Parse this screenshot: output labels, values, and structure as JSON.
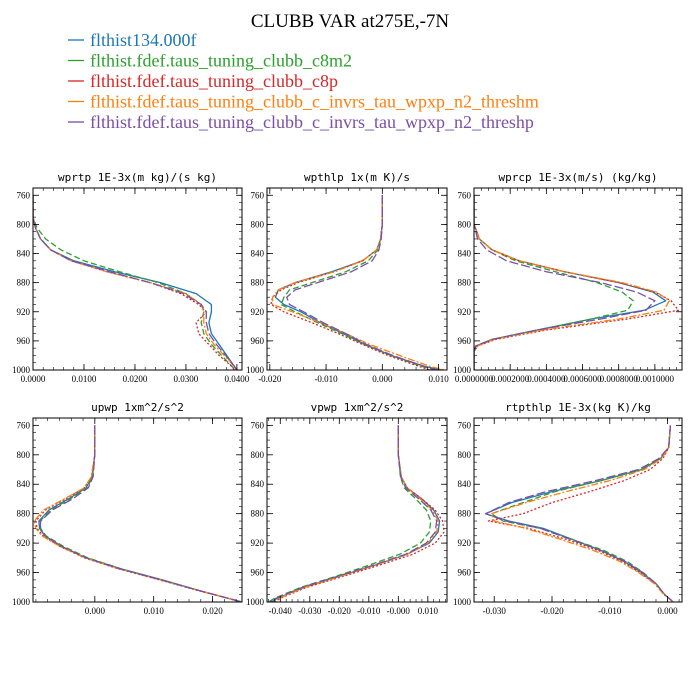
{
  "title": "CLUBB VAR at275E,-7N",
  "series": [
    {
      "name": "flthist134.000f",
      "color": "#1f77b4",
      "dash": "solid"
    },
    {
      "name": "flthist.fdef.taus_tuning_clubb_c8m2",
      "color": "#2ca02c",
      "dash": "dash"
    },
    {
      "name": "flthist.fdef.taus_tuning_clubb_c8p",
      "color": "#d62728",
      "dash": "dot"
    },
    {
      "name": "flthist.fdef.taus_tuning_clubb_c_invrs_tau_wpxp_n2_threshm",
      "color": "#ff7f0e",
      "dash": "dashdot"
    },
    {
      "name": "flthist.fdef.taus_tuning_clubb_c_invrs_tau_wpxp_n2_threshp",
      "color": "#7b4fa6",
      "dash": "longdash"
    }
  ],
  "chart_data": [
    {
      "type": "line",
      "title": "wprtp  1E-3x(m kg)/(s kg)",
      "xlim": [
        0,
        0.041
      ],
      "ylim": [
        1000,
        750
      ],
      "xticks": [
        0,
        0.01,
        0.02,
        0.03,
        0.04
      ],
      "xtick_labels": [
        "0.0000",
        "0.0100",
        "0.0200",
        "0.0300",
        "0.0400"
      ],
      "yticks": [
        760,
        800,
        840,
        880,
        920,
        960,
        1000
      ],
      "y": [
        760,
        790,
        805,
        820,
        835,
        850,
        865,
        880,
        895,
        910,
        920,
        935,
        950,
        965,
        980,
        995,
        1000
      ],
      "series_values": [
        [
          0,
          0,
          0.0005,
          0.0015,
          0.0035,
          0.008,
          0.016,
          0.025,
          0.032,
          0.035,
          0.035,
          0.0345,
          0.035,
          0.0365,
          0.038,
          0.0395,
          0.04
        ],
        [
          0,
          0,
          0.0008,
          0.0025,
          0.0055,
          0.01,
          0.017,
          0.0245,
          0.03,
          0.033,
          0.0335,
          0.033,
          0.0335,
          0.035,
          0.037,
          0.039,
          0.0398
        ],
        [
          0,
          0,
          0.0005,
          0.0015,
          0.0035,
          0.0075,
          0.0145,
          0.023,
          0.029,
          0.0325,
          0.034,
          0.032,
          0.0325,
          0.0345,
          0.0365,
          0.039,
          0.0395
        ],
        [
          0,
          0,
          0.0005,
          0.0015,
          0.0035,
          0.0075,
          0.0145,
          0.023,
          0.03,
          0.033,
          0.0335,
          0.0335,
          0.034,
          0.0355,
          0.0375,
          0.0395,
          0.04
        ],
        [
          0,
          0,
          0.0005,
          0.0015,
          0.0035,
          0.0075,
          0.015,
          0.023,
          0.0295,
          0.033,
          0.034,
          0.034,
          0.0345,
          0.036,
          0.0378,
          0.0395,
          0.04
        ]
      ]
    },
    {
      "type": "line",
      "title": "wpthlp  1x(m K)/s",
      "xlim": [
        -0.0205,
        0.0115
      ],
      "ylim": [
        1000,
        750
      ],
      "xticks": [
        -0.02,
        -0.01,
        0,
        0.01
      ],
      "xtick_labels": [
        "-0.020",
        "-0.010",
        "0.000",
        "0.010"
      ],
      "yticks": [
        760,
        800,
        840,
        880,
        920,
        960,
        1000
      ],
      "y": [
        760,
        800,
        820,
        835,
        850,
        865,
        880,
        890,
        900,
        910,
        920,
        935,
        950,
        965,
        980,
        995,
        1000
      ],
      "series_values": [
        [
          0,
          0,
          -0.0003,
          -0.001,
          -0.0035,
          -0.009,
          -0.0155,
          -0.0185,
          -0.019,
          -0.0175,
          -0.0145,
          -0.011,
          -0.007,
          -0.003,
          0.0015,
          0.0075,
          0.0105
        ],
        [
          0,
          0,
          -0.0003,
          -0.0008,
          -0.0025,
          -0.0065,
          -0.0125,
          -0.0165,
          -0.0175,
          -0.018,
          -0.0155,
          -0.0115,
          -0.0072,
          -0.0032,
          0.0015,
          0.007,
          0.0095
        ],
        [
          0,
          0,
          -0.0003,
          -0.001,
          -0.0035,
          -0.0085,
          -0.015,
          -0.018,
          -0.0195,
          -0.0198,
          -0.0175,
          -0.0125,
          -0.0078,
          -0.0035,
          0.001,
          0.0065,
          0.0085
        ],
        [
          0,
          0,
          -0.0003,
          -0.001,
          -0.0035,
          -0.0085,
          -0.0155,
          -0.0185,
          -0.0195,
          -0.0195,
          -0.016,
          -0.011,
          -0.0065,
          -0.0022,
          0.003,
          0.0085,
          0.011
        ],
        [
          0,
          0,
          -0.0002,
          -0.0006,
          -0.0018,
          -0.0055,
          -0.0115,
          -0.0155,
          -0.017,
          -0.0165,
          -0.014,
          -0.0105,
          -0.0065,
          -0.0028,
          0.0018,
          0.0075,
          0.0098
        ]
      ]
    },
    {
      "type": "line",
      "title": "wprcp  1E-3x(m/s) (kg/kg)",
      "xlim": [
        0,
        0.00115
      ],
      "ylim": [
        1000,
        750
      ],
      "xticks": [
        0,
        0.0002,
        0.0004,
        0.0006,
        0.0008,
        0.001
      ],
      "xtick_labels": [
        "0.0000000",
        "0.0002000",
        "0.0004000",
        "0.0006000",
        "0.0008000",
        "0.0010000"
      ],
      "yticks": [
        760,
        800,
        840,
        880,
        920,
        960,
        1000
      ],
      "y": [
        760,
        800,
        820,
        835,
        850,
        865,
        880,
        893,
        905,
        918,
        930,
        945,
        958,
        967,
        975,
        1000
      ],
      "series_values": [
        [
          0,
          0,
          3e-05,
          0.0001,
          0.00025,
          0.0005,
          0.0008,
          0.00099,
          0.00106,
          0.00094,
          0.00065,
          0.00035,
          0.0001,
          1e-05,
          0,
          0
        ],
        [
          0,
          0,
          3e-05,
          0.0001,
          0.00023,
          0.00045,
          0.00068,
          0.00082,
          0.00088,
          0.00085,
          0.00065,
          0.00035,
          0.0001,
          1e-05,
          0,
          0
        ],
        [
          0,
          0,
          3e-05,
          0.0001,
          0.00025,
          0.0005,
          0.0008,
          0.001,
          0.00109,
          0.00113,
          0.00085,
          0.0004,
          0.00012,
          2e-05,
          0,
          0
        ],
        [
          0,
          0,
          3e-05,
          0.0001,
          0.00025,
          0.0005,
          0.00082,
          0.00101,
          0.00108,
          0.00105,
          0.0008,
          0.00038,
          0.00011,
          2e-05,
          0,
          0
        ],
        [
          0,
          0,
          2e-05,
          7e-05,
          0.00018,
          0.0004,
          0.0007,
          0.0009,
          0.001,
          0.00095,
          0.0007,
          0.00035,
          0.0001,
          1e-05,
          0,
          0
        ]
      ]
    },
    {
      "type": "line",
      "title": "upwp  1xm^2/s^2",
      "xlim": [
        -0.0105,
        0.025
      ],
      "ylim": [
        1000,
        750
      ],
      "xticks": [
        0,
        0.01,
        0.02
      ],
      "xtick_labels": [
        "0.000",
        "0.010",
        "0.020"
      ],
      "yticks": [
        760,
        800,
        840,
        880,
        920,
        960,
        1000
      ],
      "y": [
        760,
        800,
        830,
        845,
        860,
        875,
        890,
        900,
        910,
        925,
        940,
        955,
        970,
        985,
        1000
      ],
      "series_values": [
        [
          0,
          0,
          -0.0005,
          -0.0015,
          -0.0045,
          -0.0078,
          -0.0095,
          -0.0094,
          -0.0085,
          -0.0055,
          -0.0015,
          0.0045,
          0.0115,
          0.018,
          0.025
        ],
        [
          0,
          0,
          -0.0004,
          -0.0013,
          -0.0042,
          -0.0075,
          -0.0093,
          -0.0092,
          -0.0083,
          -0.0052,
          -0.0012,
          0.0045,
          0.0112,
          0.018,
          0.025
        ],
        [
          0,
          0,
          -0.0006,
          -0.0018,
          -0.005,
          -0.0084,
          -0.01,
          -0.0098,
          -0.0088,
          -0.0058,
          -0.0018,
          0.004,
          0.011,
          0.0178,
          0.025
        ],
        [
          0,
          0,
          -0.0006,
          -0.0018,
          -0.0052,
          -0.0087,
          -0.0103,
          -0.01,
          -0.009,
          -0.0058,
          -0.0017,
          0.0042,
          0.0112,
          0.018,
          0.025
        ],
        [
          0,
          0,
          -0.0003,
          -0.0011,
          -0.0038,
          -0.0072,
          -0.0092,
          -0.0093,
          -0.0085,
          -0.0055,
          -0.0015,
          0.0043,
          0.0113,
          0.018,
          0.025
        ]
      ]
    },
    {
      "type": "line",
      "title": "vpwp  1xm^2/s^2",
      "xlim": [
        -0.0445,
        0.0165
      ],
      "ylim": [
        1000,
        750
      ],
      "xticks": [
        -0.04,
        -0.03,
        -0.02,
        -0.01,
        0,
        0.01
      ],
      "xtick_labels": [
        "-0.040",
        "-0.030",
        "-0.020",
        "-0.010",
        "-0.000",
        "0.010"
      ],
      "yticks": [
        760,
        800,
        840,
        880,
        920,
        960,
        1000
      ],
      "y": [
        760,
        800,
        830,
        845,
        860,
        875,
        890,
        905,
        920,
        935,
        950,
        965,
        980,
        995,
        1000
      ],
      "series_values": [
        [
          0,
          0,
          0.001,
          0.003,
          0.008,
          0.012,
          0.014,
          0.0135,
          0.0105,
          0.003,
          -0.008,
          -0.02,
          -0.032,
          -0.041,
          -0.043
        ],
        [
          0,
          0,
          0.0007,
          0.002,
          0.006,
          0.0095,
          0.011,
          0.0105,
          0.0075,
          0.0005,
          -0.01,
          -0.021,
          -0.033,
          -0.042,
          -0.044
        ],
        [
          0,
          0,
          0.001,
          0.003,
          0.008,
          0.0125,
          0.015,
          0.0155,
          0.0125,
          0.005,
          -0.0065,
          -0.0185,
          -0.031,
          -0.04,
          -0.042
        ],
        [
          0,
          0,
          0.001,
          0.003,
          0.0075,
          0.0115,
          0.0135,
          0.013,
          0.01,
          0.003,
          -0.0078,
          -0.0195,
          -0.0315,
          -0.0405,
          -0.042
        ],
        [
          0,
          0,
          0.0008,
          0.0025,
          0.007,
          0.011,
          0.013,
          0.0125,
          0.0095,
          0.0025,
          -0.0085,
          -0.0205,
          -0.0325,
          -0.0415,
          -0.0435
        ]
      ]
    },
    {
      "type": "line",
      "title": "rtpthlp  1E-3x(kg K)/kg",
      "xlim": [
        -0.0335,
        0.0025
      ],
      "ylim": [
        1000,
        750
      ],
      "xticks": [
        -0.03,
        -0.02,
        -0.01,
        0
      ],
      "xtick_labels": [
        "-0.030",
        "-0.020",
        "-0.010",
        "0.000"
      ],
      "yticks": [
        760,
        800,
        840,
        880,
        920,
        960,
        1000
      ],
      "y": [
        760,
        790,
        805,
        820,
        835,
        850,
        865,
        880,
        890,
        900,
        915,
        930,
        945,
        960,
        975,
        990,
        1000
      ],
      "series_values": [
        [
          0.0005,
          0.0002,
          -0.0012,
          -0.0045,
          -0.0115,
          -0.02,
          -0.027,
          -0.0315,
          -0.0275,
          -0.0215,
          -0.0165,
          -0.0115,
          -0.0075,
          -0.0045,
          -0.002,
          -0.0005,
          0.001
        ],
        [
          0.0005,
          0.0002,
          -0.0012,
          -0.0045,
          -0.0115,
          -0.0195,
          -0.025,
          -0.0305,
          -0.0285,
          -0.022,
          -0.0165,
          -0.011,
          -0.007,
          -0.0042,
          -0.002,
          -0.0005,
          0.001
        ],
        [
          0.0005,
          0.0002,
          -0.0008,
          -0.003,
          -0.0075,
          -0.0135,
          -0.02,
          -0.025,
          -0.031,
          -0.024,
          -0.0175,
          -0.012,
          -0.0078,
          -0.0048,
          -0.0022,
          -0.0006,
          0.001
        ],
        [
          0.0005,
          0.0002,
          -0.001,
          -0.004,
          -0.01,
          -0.0175,
          -0.0245,
          -0.0305,
          -0.03,
          -0.0245,
          -0.0185,
          -0.0128,
          -0.0082,
          -0.005,
          -0.0023,
          -0.0006,
          0.001
        ],
        [
          0.0005,
          0.0002,
          -0.0015,
          -0.005,
          -0.0125,
          -0.021,
          -0.0275,
          -0.0315,
          -0.028,
          -0.022,
          -0.0168,
          -0.0115,
          -0.0073,
          -0.0043,
          -0.002,
          -0.0005,
          0.001
        ]
      ]
    }
  ]
}
